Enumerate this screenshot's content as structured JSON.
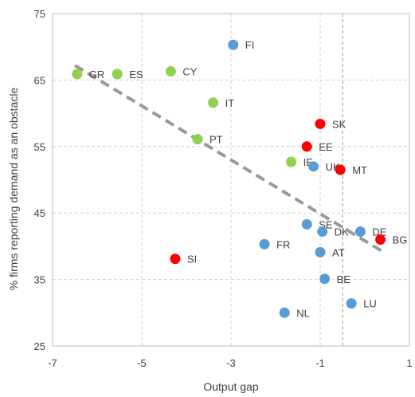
{
  "chart_data": {
    "type": "scatter",
    "xlabel": "Output gap",
    "ylabel": "% firms reporting demand as an obstacle",
    "xlim": [
      -7,
      1
    ],
    "ylim": [
      25,
      75
    ],
    "x_ticks": [
      -7,
      -5,
      -3,
      -1,
      1
    ],
    "y_ticks": [
      25,
      35,
      45,
      55,
      65,
      75
    ],
    "grid": "dashed",
    "trendline": {
      "style": "dashed",
      "color": "#999999",
      "from": [
        -6.5,
        67.2
      ],
      "to": [
        0.4,
        39.2
      ]
    },
    "marker_reference_line_x": -0.5,
    "colors": {
      "red": "#ff0000",
      "blue": "#5b9bd5",
      "green": "#92d050"
    },
    "points": [
      {
        "label": "FI",
        "x": -2.95,
        "y": 70.3,
        "color": "blue"
      },
      {
        "label": "GR",
        "x": -6.45,
        "y": 65.9,
        "color": "green"
      },
      {
        "label": "ES",
        "x": -5.55,
        "y": 65.9,
        "color": "green"
      },
      {
        "label": "CY",
        "x": -4.35,
        "y": 66.3,
        "color": "green"
      },
      {
        "label": "IT",
        "x": -3.4,
        "y": 61.6,
        "color": "green"
      },
      {
        "label": "SK",
        "x": -1.0,
        "y": 58.4,
        "color": "red"
      },
      {
        "label": "PT",
        "x": -3.75,
        "y": 56.1,
        "color": "green"
      },
      {
        "label": "EE",
        "x": -1.3,
        "y": 55.0,
        "color": "red"
      },
      {
        "label": "IE",
        "x": -1.65,
        "y": 52.7,
        "color": "green"
      },
      {
        "label": "UK",
        "x": -1.15,
        "y": 52.0,
        "color": "blue"
      },
      {
        "label": "MT",
        "x": -0.55,
        "y": 51.5,
        "color": "red"
      },
      {
        "label": "SE",
        "x": -1.3,
        "y": 43.3,
        "color": "blue"
      },
      {
        "label": "DK",
        "x": -0.95,
        "y": 42.2,
        "color": "blue"
      },
      {
        "label": "DE",
        "x": -0.1,
        "y": 42.2,
        "color": "blue"
      },
      {
        "label": "BG",
        "x": 0.35,
        "y": 41.0,
        "color": "red"
      },
      {
        "label": "FR",
        "x": -2.25,
        "y": 40.3,
        "color": "blue"
      },
      {
        "label": "AT",
        "x": -1.0,
        "y": 39.1,
        "color": "blue"
      },
      {
        "label": "SI",
        "x": -4.25,
        "y": 38.1,
        "color": "red"
      },
      {
        "label": "BE",
        "x": -0.9,
        "y": 35.1,
        "color": "blue"
      },
      {
        "label": "LU",
        "x": -0.3,
        "y": 31.4,
        "color": "blue"
      },
      {
        "label": "NL",
        "x": -1.8,
        "y": 30.0,
        "color": "blue"
      }
    ]
  }
}
